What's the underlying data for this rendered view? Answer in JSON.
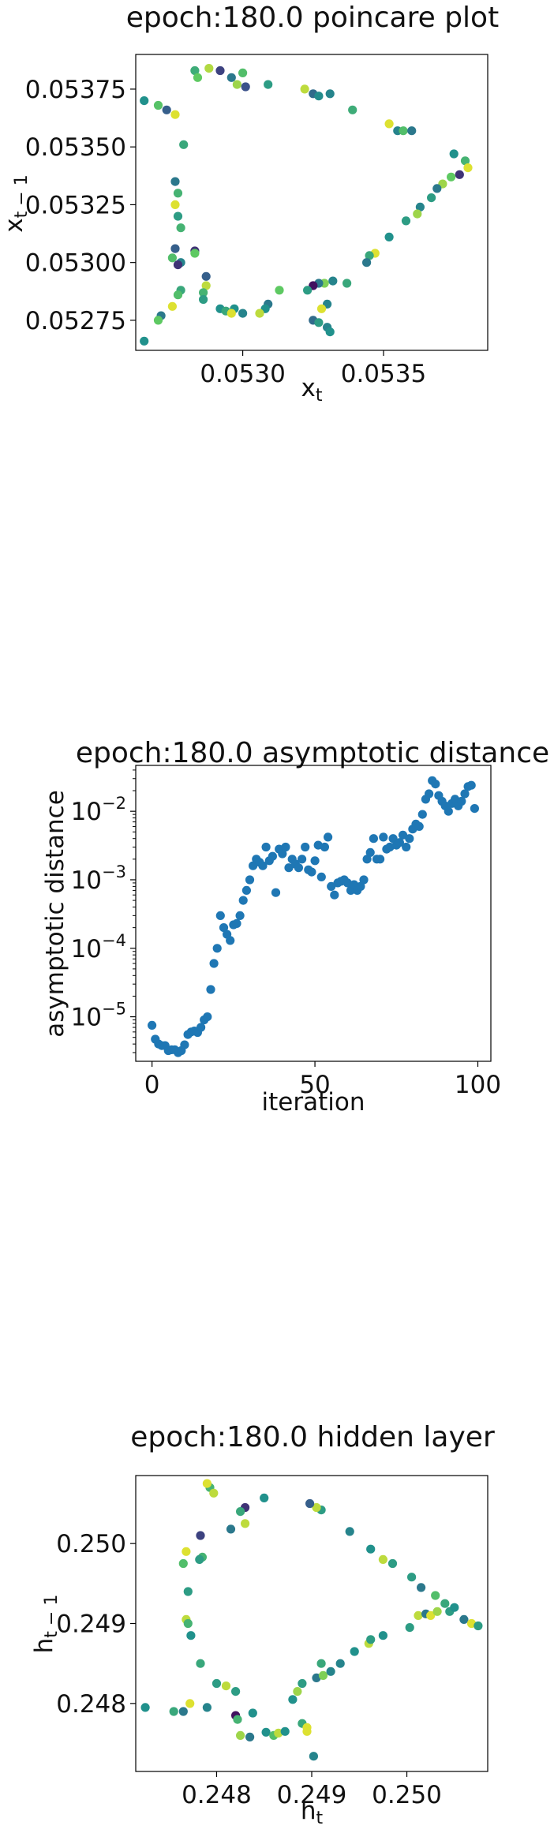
{
  "chart_data": [
    {
      "type": "scatter",
      "title": "epoch:180.0 poincare plot",
      "xlabel": "x_t",
      "ylabel": "x_{t-1}",
      "xlim": [
        0.05262,
        0.05387
      ],
      "ylim": [
        0.05262,
        0.0539
      ],
      "xticks": [
        0.053,
        0.0535
      ],
      "xtick_labels": [
        "0.0530",
        "0.0535"
      ],
      "yticks": [
        0.05275,
        0.053,
        0.05325,
        0.0535,
        0.05375
      ],
      "ytick_labels": [
        "0.05275",
        "0.05300",
        "0.05325",
        "0.05350",
        "0.05375"
      ],
      "colormap": "viridis",
      "points": [
        [
          0.05265,
          0.0537,
          0.5
        ],
        [
          0.0527,
          0.05368,
          0.72
        ],
        [
          0.05273,
          0.05366,
          0.3
        ],
        [
          0.05276,
          0.05364,
          0.95
        ],
        [
          0.05279,
          0.05351,
          0.6
        ],
        [
          0.05283,
          0.05383,
          0.62
        ],
        [
          0.05284,
          0.0538,
          0.75
        ],
        [
          0.05288,
          0.05384,
          0.88
        ],
        [
          0.05292,
          0.05383,
          0.2
        ],
        [
          0.05296,
          0.0538,
          0.4
        ],
        [
          0.05298,
          0.05377,
          0.85
        ],
        [
          0.053,
          0.05382,
          0.7
        ],
        [
          0.05301,
          0.05376,
          0.25
        ],
        [
          0.05309,
          0.05377,
          0.55
        ],
        [
          0.05322,
          0.05375,
          0.9
        ],
        [
          0.05325,
          0.05373,
          0.35
        ],
        [
          0.05327,
          0.05372,
          0.48
        ],
        [
          0.05331,
          0.05373,
          0.45
        ],
        [
          0.05339,
          0.05366,
          0.62
        ],
        [
          0.05352,
          0.0536,
          0.95
        ],
        [
          0.05355,
          0.05357,
          0.45
        ],
        [
          0.05357,
          0.05357,
          0.7
        ],
        [
          0.0536,
          0.05357,
          0.4
        ],
        [
          0.05375,
          0.05347,
          0.5
        ],
        [
          0.05379,
          0.05344,
          0.65
        ],
        [
          0.0538,
          0.05341,
          0.95
        ],
        [
          0.05377,
          0.05338,
          0.15
        ],
        [
          0.05374,
          0.05337,
          0.75
        ],
        [
          0.05371,
          0.05334,
          0.85
        ],
        [
          0.05369,
          0.05332,
          0.4
        ],
        [
          0.05367,
          0.05328,
          0.55
        ],
        [
          0.05363,
          0.05324,
          0.45
        ],
        [
          0.05362,
          0.05321,
          0.85
        ],
        [
          0.05358,
          0.05318,
          0.55
        ],
        [
          0.05352,
          0.05311,
          0.5
        ],
        [
          0.05347,
          0.05304,
          0.95
        ],
        [
          0.05345,
          0.05303,
          0.6
        ],
        [
          0.05344,
          0.053,
          0.4
        ],
        [
          0.05337,
          0.05291,
          0.6
        ],
        [
          0.05332,
          0.05292,
          0.45
        ],
        [
          0.05329,
          0.05291,
          0.8
        ],
        [
          0.05327,
          0.05291,
          0.4
        ],
        [
          0.05325,
          0.0529,
          0.05
        ],
        [
          0.05323,
          0.05288,
          0.55
        ],
        [
          0.0533,
          0.05282,
          0.45
        ],
        [
          0.05328,
          0.0528,
          0.95
        ],
        [
          0.05325,
          0.05275,
          0.35
        ],
        [
          0.05327,
          0.05274,
          0.55
        ],
        [
          0.0533,
          0.05272,
          0.45
        ],
        [
          0.05331,
          0.0527,
          0.5
        ],
        [
          0.05313,
          0.05288,
          0.75
        ],
        [
          0.05309,
          0.05282,
          0.4
        ],
        [
          0.05308,
          0.0528,
          0.5
        ],
        [
          0.05306,
          0.05278,
          0.9
        ],
        [
          0.053,
          0.05278,
          0.45
        ],
        [
          0.05297,
          0.0528,
          0.5
        ],
        [
          0.05292,
          0.0528,
          0.5
        ],
        [
          0.05294,
          0.05279,
          0.6
        ],
        [
          0.05296,
          0.05278,
          0.95
        ],
        [
          0.05287,
          0.05294,
          0.3
        ],
        [
          0.05287,
          0.0529,
          0.9
        ],
        [
          0.05286,
          0.05287,
          0.65
        ],
        [
          0.05286,
          0.05284,
          0.55
        ],
        [
          0.05283,
          0.05305,
          0.15
        ],
        [
          0.05283,
          0.05304,
          0.75
        ],
        [
          0.05278,
          0.053,
          0.45
        ],
        [
          0.05277,
          0.05299,
          0.15
        ],
        [
          0.05276,
          0.05306,
          0.3
        ],
        [
          0.05275,
          0.05302,
          0.7
        ],
        [
          0.05278,
          0.05288,
          0.6
        ],
        [
          0.05277,
          0.05286,
          0.7
        ],
        [
          0.05275,
          0.05281,
          0.95
        ],
        [
          0.05271,
          0.05277,
          0.4
        ],
        [
          0.0527,
          0.05275,
          0.75
        ],
        [
          0.05265,
          0.05266,
          0.5
        ],
        [
          0.05276,
          0.05335,
          0.4
        ],
        [
          0.05277,
          0.0533,
          0.65
        ],
        [
          0.05276,
          0.05325,
          0.95
        ],
        [
          0.05277,
          0.0532,
          0.55
        ],
        [
          0.05278,
          0.05315,
          0.65
        ]
      ]
    },
    {
      "type": "scatter",
      "title": "epoch:180.0 asymptotic distance",
      "xlabel": "iteration",
      "ylabel": "asymptotic distance",
      "yscale": "log",
      "xlim": [
        -5,
        104
      ],
      "ylim_log10": [
        -5.65,
        -1.33
      ],
      "xticks": [
        0,
        50,
        100
      ],
      "xtick_labels": [
        "0",
        "50",
        "100"
      ],
      "ytick_exponents": [
        -5,
        -4,
        -3,
        -2
      ],
      "ytick_base": "10",
      "color": "#1f77b4",
      "x": [
        0,
        1,
        2,
        3,
        4,
        5,
        6,
        7,
        8,
        9,
        10,
        11,
        12,
        13,
        14,
        15,
        16,
        17,
        18,
        19,
        20,
        21,
        22,
        23,
        24,
        25,
        26,
        27,
        28,
        29,
        30,
        31,
        32,
        33,
        34,
        35,
        36,
        37,
        38,
        39,
        40,
        41,
        42,
        43,
        44,
        45,
        46,
        47,
        48,
        49,
        50,
        51,
        52,
        53,
        54,
        55,
        56,
        57,
        58,
        59,
        60,
        61,
        62,
        63,
        64,
        65,
        66,
        67,
        68,
        69,
        70,
        71,
        72,
        73,
        74,
        75,
        76,
        77,
        78,
        79,
        80,
        81,
        82,
        83,
        84,
        85,
        86,
        87,
        88,
        89,
        90,
        91,
        92,
        93,
        94,
        95,
        96,
        97,
        98,
        99
      ],
      "y": [
        7.5e-06,
        4.7e-06,
        4e-06,
        3.8e-06,
        3.8e-06,
        3.2e-06,
        3.3e-06,
        3.3e-06,
        3e-06,
        3.2e-06,
        3.9e-06,
        5.5e-06,
        6e-06,
        6.2e-06,
        5.9e-06,
        7e-06,
        9e-06,
        1e-05,
        2.5e-05,
        6e-05,
        0.0001,
        0.0003,
        0.0002,
        0.00016,
        0.00013,
        0.00022,
        0.00023,
        0.0003,
        0.0005,
        0.0007,
        0.001,
        0.0016,
        0.002,
        0.0018,
        0.0016,
        0.003,
        0.0019,
        0.0022,
        0.00065,
        0.0028,
        0.0024,
        0.003,
        0.0015,
        0.002,
        0.0017,
        0.0015,
        0.002,
        0.003,
        0.0014,
        0.0013,
        0.0019,
        0.0032,
        0.0011,
        0.003,
        0.0042,
        0.0008,
        0.0006,
        0.0009,
        0.00095,
        0.001,
        0.0009,
        0.0007,
        0.00085,
        0.0007,
        0.0008,
        0.001,
        0.002,
        0.0025,
        0.004,
        0.002,
        0.002,
        0.0042,
        0.0028,
        0.003,
        0.004,
        0.0032,
        0.0035,
        0.0045,
        0.003,
        0.004,
        0.0055,
        0.0065,
        0.006,
        0.009,
        0.015,
        0.018,
        0.028,
        0.025,
        0.017,
        0.014,
        0.012,
        0.01,
        0.013,
        0.015,
        0.012,
        0.014,
        0.018,
        0.023,
        0.024,
        0.011
      ]
    },
    {
      "type": "scatter",
      "title": "epoch:180.0 hidden layer",
      "xlabel": "h_t",
      "ylabel": "h_{t-1}",
      "xlim": [
        0.24715,
        0.25085
      ],
      "ylim": [
        0.24715,
        0.25085
      ],
      "xticks": [
        0.248,
        0.249,
        0.25
      ],
      "xtick_labels": [
        "0.248",
        "0.249",
        "0.250"
      ],
      "yticks": [
        0.248,
        0.249,
        0.25
      ],
      "ytick_labels": [
        "0.248",
        "0.249",
        "0.250"
      ],
      "colormap": "viridis",
      "points": [
        [
          0.24725,
          0.24795,
          0.5
        ],
        [
          0.24755,
          0.2479,
          0.6
        ],
        [
          0.24765,
          0.2479,
          0.4
        ],
        [
          0.24772,
          0.248,
          0.95
        ],
        [
          0.2479,
          0.24795,
          0.45
        ],
        [
          0.24783,
          0.2485,
          0.6
        ],
        [
          0.248,
          0.24825,
          0.55
        ],
        [
          0.2481,
          0.24822,
          0.9
        ],
        [
          0.2482,
          0.24815,
          0.55
        ],
        [
          0.2482,
          0.24785,
          0.05
        ],
        [
          0.24822,
          0.2478,
          0.65
        ],
        [
          0.24838,
          0.24788,
          0.5
        ],
        [
          0.24825,
          0.2476,
          0.85
        ],
        [
          0.24835,
          0.24758,
          0.4
        ],
        [
          0.24852,
          0.24764,
          0.5
        ],
        [
          0.2486,
          0.2476,
          0.7
        ],
        [
          0.24865,
          0.24763,
          0.9
        ],
        [
          0.24872,
          0.24765,
          0.5
        ],
        [
          0.2489,
          0.24775,
          0.6
        ],
        [
          0.24895,
          0.2477,
          0.95
        ],
        [
          0.24895,
          0.24765,
          0.95
        ],
        [
          0.2488,
          0.24805,
          0.5
        ],
        [
          0.2489,
          0.24825,
          0.55
        ],
        [
          0.24885,
          0.24815,
          0.85
        ],
        [
          0.24905,
          0.24832,
          0.4
        ],
        [
          0.24912,
          0.24835,
          0.8
        ],
        [
          0.2492,
          0.2484,
          0.45
        ],
        [
          0.2491,
          0.2485,
          0.6
        ],
        [
          0.2493,
          0.2485,
          0.45
        ],
        [
          0.24945,
          0.24865,
          0.5
        ],
        [
          0.2496,
          0.24875,
          0.9
        ],
        [
          0.24962,
          0.2488,
          0.55
        ],
        [
          0.24975,
          0.24885,
          0.5
        ],
        [
          0.25003,
          0.24895,
          0.55
        ],
        [
          0.25012,
          0.2491,
          0.9
        ],
        [
          0.2502,
          0.24912,
          0.4
        ],
        [
          0.25025,
          0.2491,
          0.95
        ],
        [
          0.25032,
          0.24915,
          0.85
        ],
        [
          0.25045,
          0.24915,
          0.55
        ],
        [
          0.2506,
          0.24905,
          0.4
        ],
        [
          0.25068,
          0.249,
          0.95
        ],
        [
          0.25075,
          0.24897,
          0.55
        ],
        [
          0.2505,
          0.2492,
          0.5
        ],
        [
          0.2504,
          0.24925,
          0.6
        ],
        [
          0.2503,
          0.24935,
          0.7
        ],
        [
          0.25015,
          0.24945,
          0.4
        ],
        [
          0.25005,
          0.24958,
          0.55
        ],
        [
          0.24985,
          0.24975,
          0.55
        ],
        [
          0.24975,
          0.2498,
          0.9
        ],
        [
          0.24962,
          0.24993,
          0.5
        ],
        [
          0.2494,
          0.25015,
          0.45
        ],
        [
          0.2491,
          0.25042,
          0.55
        ],
        [
          0.24905,
          0.25045,
          0.9
        ],
        [
          0.24898,
          0.2505,
          0.3
        ],
        [
          0.2485,
          0.25057,
          0.5
        ],
        [
          0.2483,
          0.25045,
          0.15
        ],
        [
          0.24825,
          0.2504,
          0.6
        ],
        [
          0.2483,
          0.25025,
          0.9
        ],
        [
          0.24815,
          0.25018,
          0.4
        ],
        [
          0.24793,
          0.2507,
          0.65
        ],
        [
          0.2479,
          0.25075,
          0.95
        ],
        [
          0.24797,
          0.25063,
          0.9
        ],
        [
          0.24783,
          0.2501,
          0.2
        ],
        [
          0.24785,
          0.24983,
          0.65
        ],
        [
          0.24782,
          0.2498,
          0.55
        ],
        [
          0.24765,
          0.24975,
          0.7
        ],
        [
          0.24768,
          0.2499,
          0.95
        ],
        [
          0.2477,
          0.2494,
          0.55
        ],
        [
          0.24768,
          0.24905,
          0.9
        ],
        [
          0.2477,
          0.249,
          0.65
        ],
        [
          0.24773,
          0.24885,
          0.5
        ],
        [
          0.24902,
          0.24734,
          0.45
        ]
      ]
    }
  ]
}
